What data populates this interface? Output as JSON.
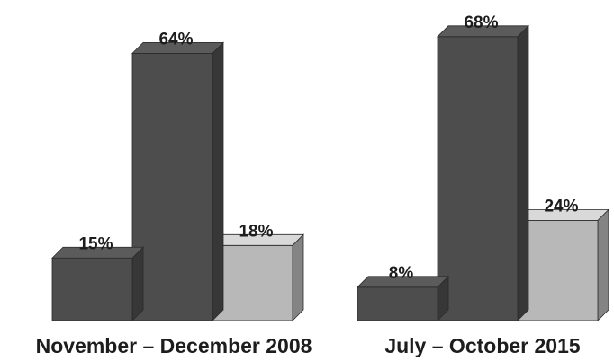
{
  "chart_data": [
    {
      "type": "bar",
      "title": "November – December 2008",
      "ylim": [
        0,
        70
      ],
      "grid": false,
      "values": [
        15,
        64,
        18
      ],
      "labels": [
        "15%",
        "64%",
        "18%"
      ],
      "colors": [
        "#4d4d4d",
        "#4d4d4d",
        "#b8b8b8"
      ]
    },
    {
      "type": "bar",
      "title": "July – October 2015",
      "ylim": [
        0,
        70
      ],
      "grid": false,
      "values": [
        8,
        68,
        24
      ],
      "labels": [
        "8%",
        "68%",
        "24%"
      ],
      "colors": [
        "#4d4d4d",
        "#4d4d4d",
        "#b8b8b8"
      ]
    }
  ]
}
